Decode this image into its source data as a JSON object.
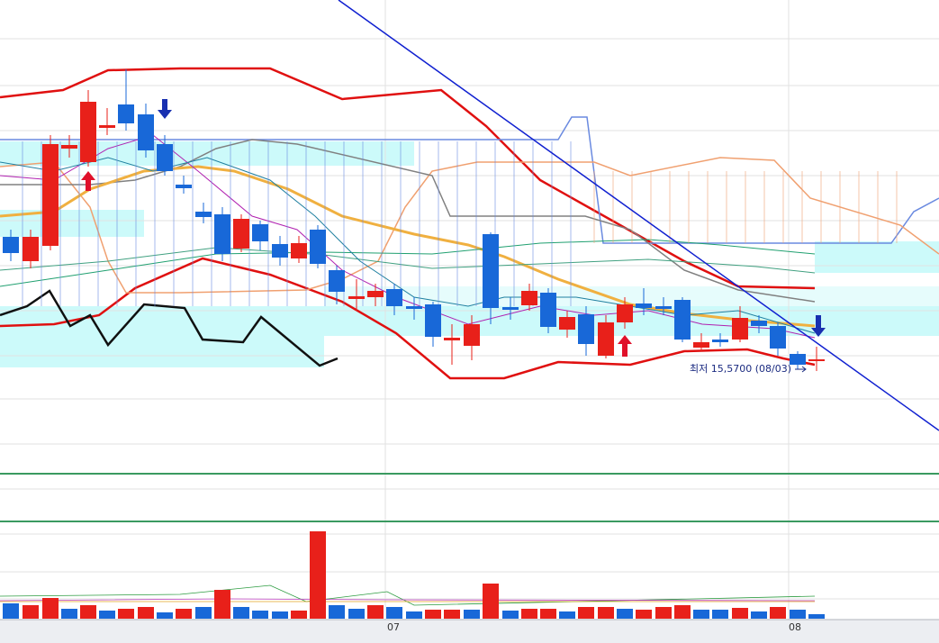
{
  "annotation": "최저 15,5700 (08/03)",
  "x_labels": [
    "07",
    "08"
  ]
}
